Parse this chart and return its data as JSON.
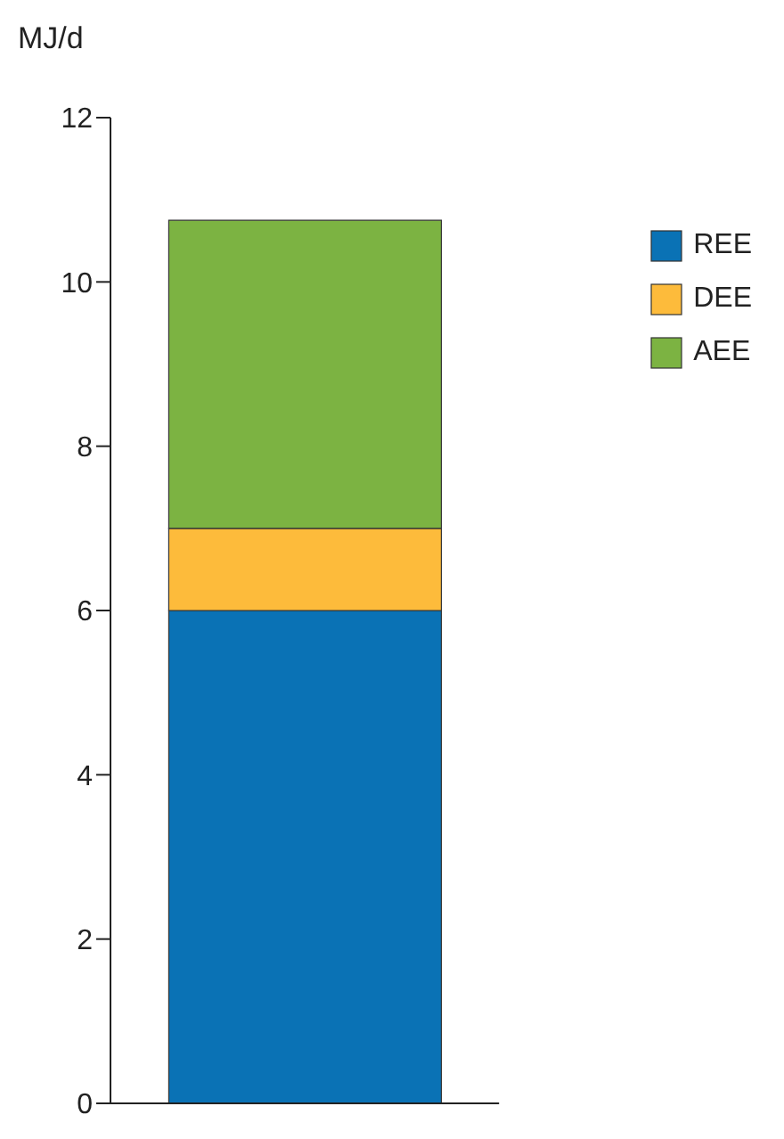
{
  "chart_data": {
    "type": "bar",
    "ylabel": "MJ/d",
    "categories": [
      null
    ],
    "stacked": true,
    "series": [
      {
        "name": "REE",
        "color": "#0a72b5",
        "values": [
          6
        ]
      },
      {
        "name": "DEE",
        "color": "#fdbb3b",
        "values": [
          1
        ]
      },
      {
        "name": "AEE",
        "color": "#7cb342",
        "values": [
          3.75
        ]
      }
    ],
    "ylim": [
      0,
      12
    ],
    "yticks": [
      0,
      2,
      4,
      6,
      8,
      10,
      12
    ],
    "tick_labels": "y",
    "grid": false,
    "legend": "top right"
  }
}
